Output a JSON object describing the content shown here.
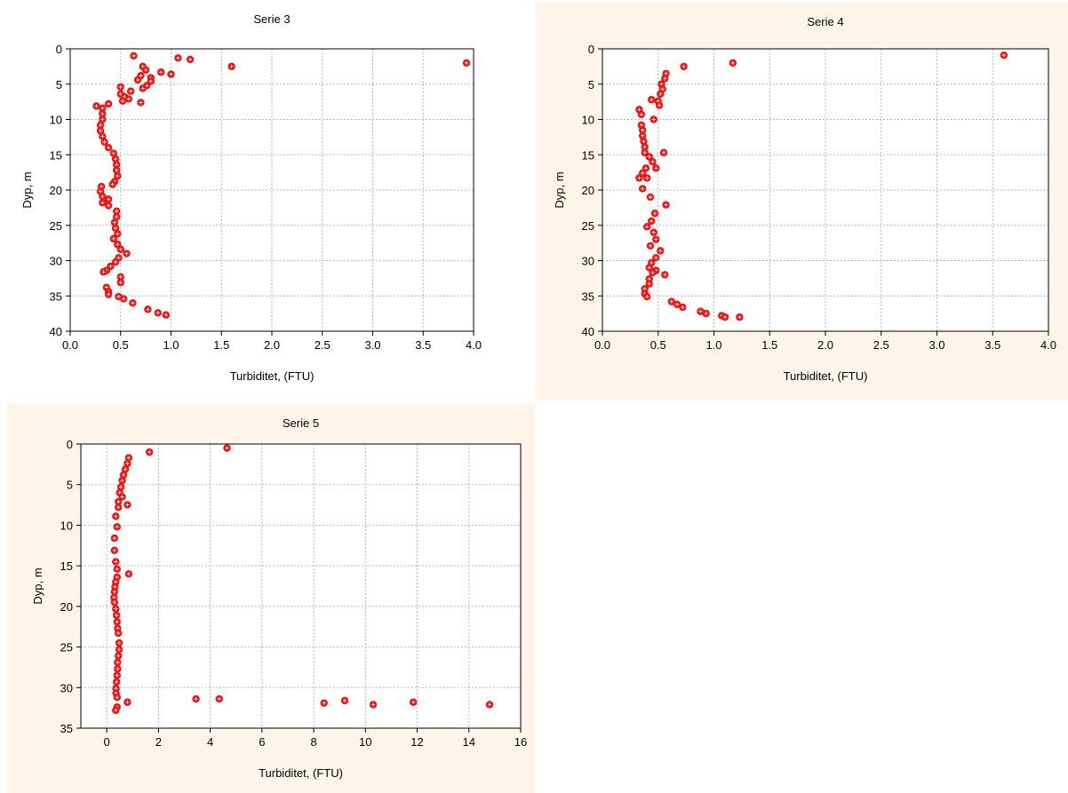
{
  "chart_data": [
    {
      "type": "scatter",
      "title": "Serie 3",
      "xlabel": "Turbiditet, (FTU)",
      "ylabel": "Dyp, m",
      "xlim": [
        0,
        4
      ],
      "ylim": [
        0,
        40
      ],
      "y_inverted": true,
      "xticks": [
        "0.0",
        "0.5",
        "1.0",
        "1.5",
        "2.0",
        "2.5",
        "3.0",
        "3.5",
        "4.0"
      ],
      "yticks": [
        "0",
        "5",
        "10",
        "15",
        "20",
        "25",
        "30",
        "35",
        "40"
      ],
      "grid": true,
      "marker_color": "#ee1111",
      "background": "#ffffff",
      "points": [
        [
          0.63,
          1.0
        ],
        [
          1.07,
          1.3
        ],
        [
          1.19,
          1.5
        ],
        [
          3.93,
          2.0
        ],
        [
          1.6,
          2.5
        ],
        [
          0.72,
          2.5
        ],
        [
          0.75,
          3.0
        ],
        [
          0.9,
          3.3
        ],
        [
          1.0,
          3.6
        ],
        [
          0.7,
          3.8
        ],
        [
          0.8,
          4.1
        ],
        [
          0.67,
          4.4
        ],
        [
          0.8,
          4.6
        ],
        [
          0.76,
          5.2
        ],
        [
          0.5,
          5.4
        ],
        [
          0.72,
          5.6
        ],
        [
          0.6,
          6.0
        ],
        [
          0.5,
          6.4
        ],
        [
          0.54,
          6.8
        ],
        [
          0.58,
          7.1
        ],
        [
          0.52,
          7.4
        ],
        [
          0.7,
          7.6
        ],
        [
          0.38,
          7.8
        ],
        [
          0.26,
          8.1
        ],
        [
          0.32,
          8.4
        ],
        [
          0.32,
          9.2
        ],
        [
          0.32,
          10.0
        ],
        [
          0.3,
          10.8
        ],
        [
          0.3,
          11.6
        ],
        [
          0.32,
          12.4
        ],
        [
          0.34,
          13.2
        ],
        [
          0.38,
          14.0
        ],
        [
          0.43,
          14.8
        ],
        [
          0.45,
          15.6
        ],
        [
          0.46,
          16.4
        ],
        [
          0.46,
          17.2
        ],
        [
          0.47,
          18.0
        ],
        [
          0.44,
          18.8
        ],
        [
          0.42,
          19.2
        ],
        [
          0.31,
          19.5
        ],
        [
          0.3,
          20.2
        ],
        [
          0.32,
          20.9
        ],
        [
          0.38,
          21.3
        ],
        [
          0.32,
          21.8
        ],
        [
          0.38,
          22.2
        ],
        [
          0.46,
          23.0
        ],
        [
          0.46,
          23.8
        ],
        [
          0.44,
          24.6
        ],
        [
          0.45,
          25.4
        ],
        [
          0.47,
          26.2
        ],
        [
          0.43,
          26.9
        ],
        [
          0.47,
          27.7
        ],
        [
          0.5,
          28.4
        ],
        [
          0.56,
          29.0
        ],
        [
          0.48,
          29.6
        ],
        [
          0.45,
          30.2
        ],
        [
          0.4,
          30.8
        ],
        [
          0.36,
          31.4
        ],
        [
          0.33,
          31.6
        ],
        [
          0.5,
          32.3
        ],
        [
          0.5,
          33.1
        ],
        [
          0.36,
          33.8
        ],
        [
          0.38,
          34.4
        ],
        [
          0.38,
          34.8
        ],
        [
          0.48,
          35.1
        ],
        [
          0.53,
          35.4
        ],
        [
          0.62,
          36.0
        ],
        [
          0.77,
          36.9
        ],
        [
          0.87,
          37.4
        ],
        [
          0.95,
          37.7
        ]
      ]
    },
    {
      "type": "scatter",
      "title": "Serie 4",
      "xlabel": "Turbiditet, (FTU)",
      "ylabel": "Dyp, m",
      "xlim": [
        0,
        4
      ],
      "ylim": [
        0,
        40
      ],
      "y_inverted": true,
      "xticks": [
        "0.0",
        "0.5",
        "1.0",
        "1.5",
        "2.0",
        "2.5",
        "3.0",
        "3.5",
        "4.0"
      ],
      "yticks": [
        "0",
        "5",
        "10",
        "15",
        "20",
        "25",
        "30",
        "35",
        "40"
      ],
      "grid": true,
      "marker_color": "#ee1111",
      "background": "#fdf6e8",
      "points": [
        [
          3.6,
          0.9
        ],
        [
          1.17,
          2.0
        ],
        [
          0.73,
          2.5
        ],
        [
          0.57,
          3.5
        ],
        [
          0.56,
          4.2
        ],
        [
          0.53,
          5.0
        ],
        [
          0.54,
          5.7
        ],
        [
          0.52,
          6.4
        ],
        [
          0.5,
          7.4
        ],
        [
          0.44,
          7.2
        ],
        [
          0.51,
          8.0
        ],
        [
          0.33,
          8.6
        ],
        [
          0.35,
          9.3
        ],
        [
          0.46,
          10.0
        ],
        [
          0.35,
          10.8
        ],
        [
          0.36,
          11.5
        ],
        [
          0.36,
          12.3
        ],
        [
          0.37,
          13.1
        ],
        [
          0.38,
          13.9
        ],
        [
          0.38,
          14.7
        ],
        [
          0.55,
          14.7
        ],
        [
          0.42,
          15.3
        ],
        [
          0.45,
          16.0
        ],
        [
          0.39,
          16.9
        ],
        [
          0.48,
          16.9
        ],
        [
          0.36,
          17.6
        ],
        [
          0.33,
          18.3
        ],
        [
          0.4,
          18.3
        ],
        [
          0.36,
          19.8
        ],
        [
          0.43,
          21.0
        ],
        [
          0.57,
          22.1
        ],
        [
          0.47,
          23.3
        ],
        [
          0.44,
          24.4
        ],
        [
          0.4,
          25.2
        ],
        [
          0.46,
          26.0
        ],
        [
          0.48,
          27.0
        ],
        [
          0.43,
          27.9
        ],
        [
          0.52,
          28.6
        ],
        [
          0.48,
          29.6
        ],
        [
          0.44,
          30.3
        ],
        [
          0.42,
          31.0
        ],
        [
          0.48,
          31.4
        ],
        [
          0.45,
          31.7
        ],
        [
          0.56,
          32.0
        ],
        [
          0.42,
          32.6
        ],
        [
          0.42,
          33.3
        ],
        [
          0.38,
          34.0
        ],
        [
          0.38,
          34.7
        ],
        [
          0.4,
          35.1
        ],
        [
          0.62,
          35.8
        ],
        [
          0.67,
          36.2
        ],
        [
          0.72,
          36.6
        ],
        [
          0.88,
          37.2
        ],
        [
          0.93,
          37.5
        ],
        [
          1.07,
          37.8
        ],
        [
          1.1,
          38.0
        ],
        [
          1.23,
          38.0
        ]
      ]
    },
    {
      "type": "scatter",
      "title": "Serie 5",
      "xlabel": "Turbiditet, (FTU)",
      "ylabel": "Dyp, m",
      "xlim": [
        -1,
        16
      ],
      "ylim": [
        0,
        35
      ],
      "y_inverted": true,
      "xticks": [
        "0",
        "2",
        "4",
        "6",
        "8",
        "10",
        "12",
        "14",
        "16"
      ],
      "yticks": [
        "0",
        "5",
        "10",
        "15",
        "20",
        "25",
        "30",
        "35"
      ],
      "grid": true,
      "marker_color": "#ee1111",
      "background": "#fdf6e8",
      "points": [
        [
          4.65,
          0.5
        ],
        [
          1.65,
          1.0
        ],
        [
          0.85,
          1.7
        ],
        [
          0.8,
          2.4
        ],
        [
          0.72,
          3.1
        ],
        [
          0.65,
          3.8
        ],
        [
          0.6,
          4.5
        ],
        [
          0.55,
          5.3
        ],
        [
          0.5,
          6.0
        ],
        [
          0.6,
          6.5
        ],
        [
          0.45,
          7.1
        ],
        [
          0.8,
          7.5
        ],
        [
          0.45,
          7.8
        ],
        [
          0.35,
          8.9
        ],
        [
          0.4,
          10.2
        ],
        [
          0.3,
          11.6
        ],
        [
          0.3,
          13.1
        ],
        [
          0.35,
          14.5
        ],
        [
          0.4,
          15.4
        ],
        [
          0.85,
          16.0
        ],
        [
          0.4,
          16.4
        ],
        [
          0.35,
          17.0
        ],
        [
          0.32,
          17.6
        ],
        [
          0.3,
          18.2
        ],
        [
          0.28,
          18.9
        ],
        [
          0.3,
          19.5
        ],
        [
          0.35,
          20.3
        ],
        [
          0.38,
          21.1
        ],
        [
          0.4,
          21.9
        ],
        [
          0.42,
          22.7
        ],
        [
          0.45,
          23.3
        ],
        [
          0.48,
          24.5
        ],
        [
          0.48,
          25.3
        ],
        [
          0.45,
          26.1
        ],
        [
          0.42,
          26.9
        ],
        [
          0.42,
          27.7
        ],
        [
          0.4,
          28.5
        ],
        [
          0.38,
          29.3
        ],
        [
          0.36,
          30.1
        ],
        [
          0.36,
          30.7
        ],
        [
          0.4,
          31.2
        ],
        [
          3.45,
          31.4
        ],
        [
          4.35,
          31.4
        ],
        [
          0.8,
          31.8
        ],
        [
          9.2,
          31.6
        ],
        [
          8.4,
          31.9
        ],
        [
          11.85,
          31.8
        ],
        [
          10.3,
          32.1
        ],
        [
          14.8,
          32.1
        ],
        [
          0.4,
          32.4
        ],
        [
          0.35,
          32.8
        ]
      ]
    }
  ]
}
